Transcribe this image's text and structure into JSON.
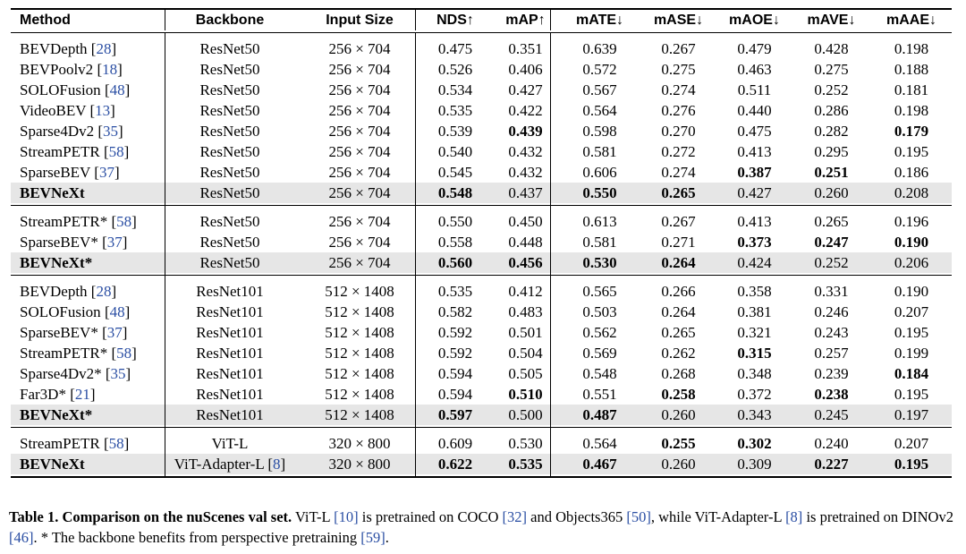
{
  "table": {
    "headers": [
      "Method",
      "Backbone",
      "Input Size",
      "NDS↑",
      "mAP↑",
      "mATE↓",
      "mASE↓",
      "mAOE↓",
      "mAVE↓",
      "mAAE↓"
    ],
    "groups": [
      {
        "rows": [
          {
            "method": "BEVDepth",
            "cite": "28",
            "backbone": "ResNet50",
            "size": "256 × 704",
            "vals": [
              "0.475",
              "0.351",
              "0.639",
              "0.267",
              "0.479",
              "0.428",
              "0.198"
            ],
            "bold_cols": []
          },
          {
            "method": "BEVPoolv2",
            "cite": "18",
            "backbone": "ResNet50",
            "size": "256 × 704",
            "vals": [
              "0.526",
              "0.406",
              "0.572",
              "0.275",
              "0.463",
              "0.275",
              "0.188"
            ],
            "bold_cols": []
          },
          {
            "method": "SOLOFusion",
            "cite": "48",
            "backbone": "ResNet50",
            "size": "256 × 704",
            "vals": [
              "0.534",
              "0.427",
              "0.567",
              "0.274",
              "0.511",
              "0.252",
              "0.181"
            ],
            "bold_cols": []
          },
          {
            "method": "VideoBEV",
            "cite": "13",
            "backbone": "ResNet50",
            "size": "256 × 704",
            "vals": [
              "0.535",
              "0.422",
              "0.564",
              "0.276",
              "0.440",
              "0.286",
              "0.198"
            ],
            "bold_cols": []
          },
          {
            "method": "Sparse4Dv2",
            "cite": "35",
            "backbone": "ResNet50",
            "size": "256 × 704",
            "vals": [
              "0.539",
              "0.439",
              "0.598",
              "0.270",
              "0.475",
              "0.282",
              "0.179"
            ],
            "bold_cols": [
              1,
              6
            ]
          },
          {
            "method": "StreamPETR",
            "cite": "58",
            "backbone": "ResNet50",
            "size": "256 × 704",
            "vals": [
              "0.540",
              "0.432",
              "0.581",
              "0.272",
              "0.413",
              "0.295",
              "0.195"
            ],
            "bold_cols": []
          },
          {
            "method": "SparseBEV",
            "cite": "37",
            "backbone": "ResNet50",
            "size": "256 × 704",
            "vals": [
              "0.545",
              "0.432",
              "0.606",
              "0.274",
              "0.387",
              "0.251",
              "0.186"
            ],
            "bold_cols": [
              4,
              5
            ]
          },
          {
            "method": "BEVNeXt",
            "cite": "",
            "backbone": "ResNet50",
            "size": "256 × 704",
            "vals": [
              "0.548",
              "0.437",
              "0.550",
              "0.265",
              "0.427",
              "0.260",
              "0.208"
            ],
            "bold_cols": [
              0,
              2,
              3
            ],
            "ours": true
          }
        ]
      },
      {
        "rows": [
          {
            "method": "StreamPETR*",
            "cite": "58",
            "backbone": "ResNet50",
            "size": "256 × 704",
            "vals": [
              "0.550",
              "0.450",
              "0.613",
              "0.267",
              "0.413",
              "0.265",
              "0.196"
            ],
            "bold_cols": []
          },
          {
            "method": "SparseBEV*",
            "cite": "37",
            "backbone": "ResNet50",
            "size": "256 × 704",
            "vals": [
              "0.558",
              "0.448",
              "0.581",
              "0.271",
              "0.373",
              "0.247",
              "0.190"
            ],
            "bold_cols": [
              4,
              5,
              6
            ]
          },
          {
            "method": "BEVNeXt*",
            "cite": "",
            "backbone": "ResNet50",
            "size": "256 × 704",
            "vals": [
              "0.560",
              "0.456",
              "0.530",
              "0.264",
              "0.424",
              "0.252",
              "0.206"
            ],
            "bold_cols": [
              0,
              1,
              2,
              3
            ],
            "ours": true
          }
        ]
      },
      {
        "rows": [
          {
            "method": "BEVDepth",
            "cite": "28",
            "backbone": "ResNet101",
            "size": "512 × 1408",
            "vals": [
              "0.535",
              "0.412",
              "0.565",
              "0.266",
              "0.358",
              "0.331",
              "0.190"
            ],
            "bold_cols": []
          },
          {
            "method": "SOLOFusion",
            "cite": "48",
            "backbone": "ResNet101",
            "size": "512 × 1408",
            "vals": [
              "0.582",
              "0.483",
              "0.503",
              "0.264",
              "0.381",
              "0.246",
              "0.207"
            ],
            "bold_cols": []
          },
          {
            "method": "SparseBEV*",
            "cite": "37",
            "backbone": "ResNet101",
            "size": "512 × 1408",
            "vals": [
              "0.592",
              "0.501",
              "0.562",
              "0.265",
              "0.321",
              "0.243",
              "0.195"
            ],
            "bold_cols": []
          },
          {
            "method": "StreamPETR*",
            "cite": "58",
            "backbone": "ResNet101",
            "size": "512 × 1408",
            "vals": [
              "0.592",
              "0.504",
              "0.569",
              "0.262",
              "0.315",
              "0.257",
              "0.199"
            ],
            "bold_cols": [
              4
            ]
          },
          {
            "method": "Sparse4Dv2*",
            "cite": "35",
            "backbone": "ResNet101",
            "size": "512 × 1408",
            "vals": [
              "0.594",
              "0.505",
              "0.548",
              "0.268",
              "0.348",
              "0.239",
              "0.184"
            ],
            "bold_cols": [
              6
            ]
          },
          {
            "method": "Far3D*",
            "cite": "21",
            "backbone": "ResNet101",
            "size": "512 × 1408",
            "vals": [
              "0.594",
              "0.510",
              "0.551",
              "0.258",
              "0.372",
              "0.238",
              "0.195"
            ],
            "bold_cols": [
              1,
              3,
              5
            ]
          },
          {
            "method": "BEVNeXt*",
            "cite": "",
            "backbone": "ResNet101",
            "size": "512 × 1408",
            "vals": [
              "0.597",
              "0.500",
              "0.487",
              "0.260",
              "0.343",
              "0.245",
              "0.197"
            ],
            "bold_cols": [
              0,
              2
            ],
            "ours": true
          }
        ]
      },
      {
        "rows": [
          {
            "method": "StreamPETR",
            "cite": "58",
            "backbone": "ViT-L",
            "backbone_cite": "",
            "size": "320 × 800",
            "vals": [
              "0.609",
              "0.530",
              "0.564",
              "0.255",
              "0.302",
              "0.240",
              "0.207"
            ],
            "bold_cols": [
              3,
              4
            ]
          },
          {
            "method": "BEVNeXt",
            "cite": "",
            "backbone": "ViT-Adapter-L",
            "backbone_cite": "8",
            "size": "320 × 800",
            "vals": [
              "0.622",
              "0.535",
              "0.467",
              "0.260",
              "0.309",
              "0.227",
              "0.195"
            ],
            "bold_cols": [
              0,
              1,
              2,
              5,
              6
            ],
            "ours": true
          }
        ]
      }
    ]
  },
  "caption": {
    "label": "Table 1.",
    "title": "Comparison on the nuScenes val set.",
    "parts": [
      {
        "t": " ViT-L "
      },
      {
        "c": "[10]"
      },
      {
        "t": " is pretrained on COCO "
      },
      {
        "c": "[32]"
      },
      {
        "t": " and Objects365 "
      },
      {
        "c": "[50]"
      },
      {
        "t": ", while ViT-Adapter-L "
      },
      {
        "c": "[8]"
      },
      {
        "t": " is pretrained on DINOv2 "
      },
      {
        "c": "[46]"
      },
      {
        "t": ". * The backbone benefits from perspective pretraining "
      },
      {
        "c": "[59]"
      },
      {
        "t": "."
      }
    ]
  },
  "colors": {
    "citation": "#2a4ea3",
    "highlight_row": "#e6e6e6"
  }
}
